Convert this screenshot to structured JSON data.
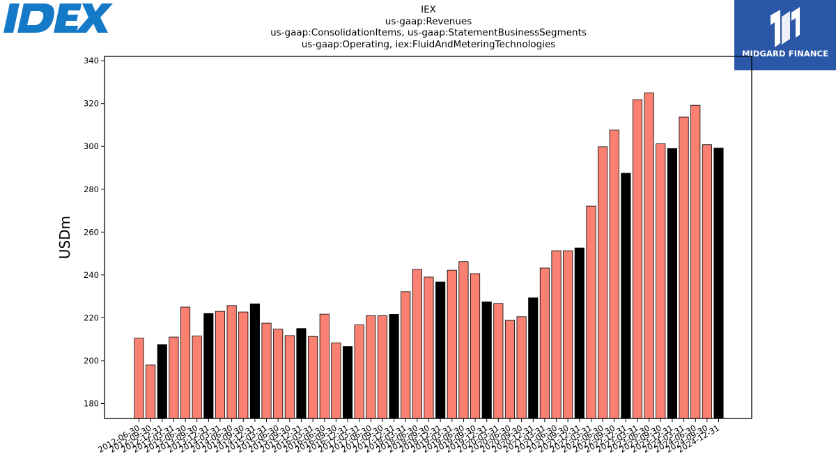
{
  "logos": {
    "left": {
      "text": "IDEX",
      "icon": "idex-logo-icon",
      "color": "#1479c7"
    },
    "right": {
      "text": "MIDGARD FINANCE",
      "icon": "midgard-finance-logo-icon",
      "background": "#2b57a8"
    }
  },
  "colors": {
    "bar": "#fa8072",
    "highlight": "#000000",
    "edge": "#000000"
  },
  "chart_data": {
    "type": "bar",
    "title_lines": [
      "IEX",
      "us-gaap:Revenues",
      "us-gaap:ConsolidationItems, us-gaap:StatementBusinessSegments",
      "us-gaap:Operating, iex:FluidAndMeteringTechnologies"
    ],
    "xlabel": "",
    "ylabel": "USDm",
    "ylim": [
      173,
      342
    ],
    "yticks": [
      180,
      200,
      220,
      240,
      260,
      280,
      300,
      320,
      340
    ],
    "grid": false,
    "legend": "none",
    "categories": [
      "2012-06-30",
      "2012-09-30",
      "2012-12-31",
      "2013-03-31",
      "2013-06-30",
      "2013-09-30",
      "2013-12-31",
      "2014-03-31",
      "2014-06-30",
      "2014-09-30",
      "2014-12-31",
      "2015-03-31",
      "2015-06-30",
      "2015-09-30",
      "2015-12-31",
      "2016-03-31",
      "2016-06-30",
      "2016-09-30",
      "2016-12-31",
      "2017-03-31",
      "2017-06-30",
      "2017-09-30",
      "2017-12-31",
      "2018-03-31",
      "2018-06-30",
      "2018-09-30",
      "2018-12-31",
      "2019-03-31",
      "2019-06-30",
      "2019-09-30",
      "2019-12-31",
      "2020-03-31",
      "2020-06-30",
      "2020-09-30",
      "2020-12-31",
      "2021-03-31",
      "2021-06-30",
      "2021-09-30",
      "2021-12-31",
      "2022-03-31",
      "2022-06-30",
      "2022-09-30",
      "2022-12-31",
      "2023-03-31",
      "2023-06-30",
      "2023-09-30",
      "2023-12-31",
      "2024-03-31",
      "2024-06-30",
      "2024-09-30",
      "2024-12-31"
    ],
    "values": [
      210.5,
      198,
      207.5,
      211,
      225,
      211.5,
      222,
      223,
      225.7,
      222.7,
      226.5,
      217.5,
      214.7,
      211.7,
      215,
      211.3,
      221.7,
      208.3,
      206.6,
      216.7,
      221,
      221,
      221.6,
      232.2,
      242.6,
      239,
      236.7,
      242.2,
      246.2,
      240.6,
      227.4,
      226.7,
      218.8,
      220.5,
      229.3,
      243.2,
      251.3,
      251.3,
      252.6,
      272.1,
      299.8,
      307.6,
      287.5,
      321.8,
      325,
      301.2,
      299,
      313.7,
      319.2,
      300.8,
      299.2
    ],
    "highlighted": [
      "2012-12-31",
      "2013-12-31",
      "2014-12-31",
      "2015-12-31",
      "2016-12-31",
      "2017-12-31",
      "2018-12-31",
      "2019-12-31",
      "2020-12-31",
      "2021-12-31",
      "2022-12-31",
      "2023-12-31",
      "2024-12-31"
    ]
  }
}
